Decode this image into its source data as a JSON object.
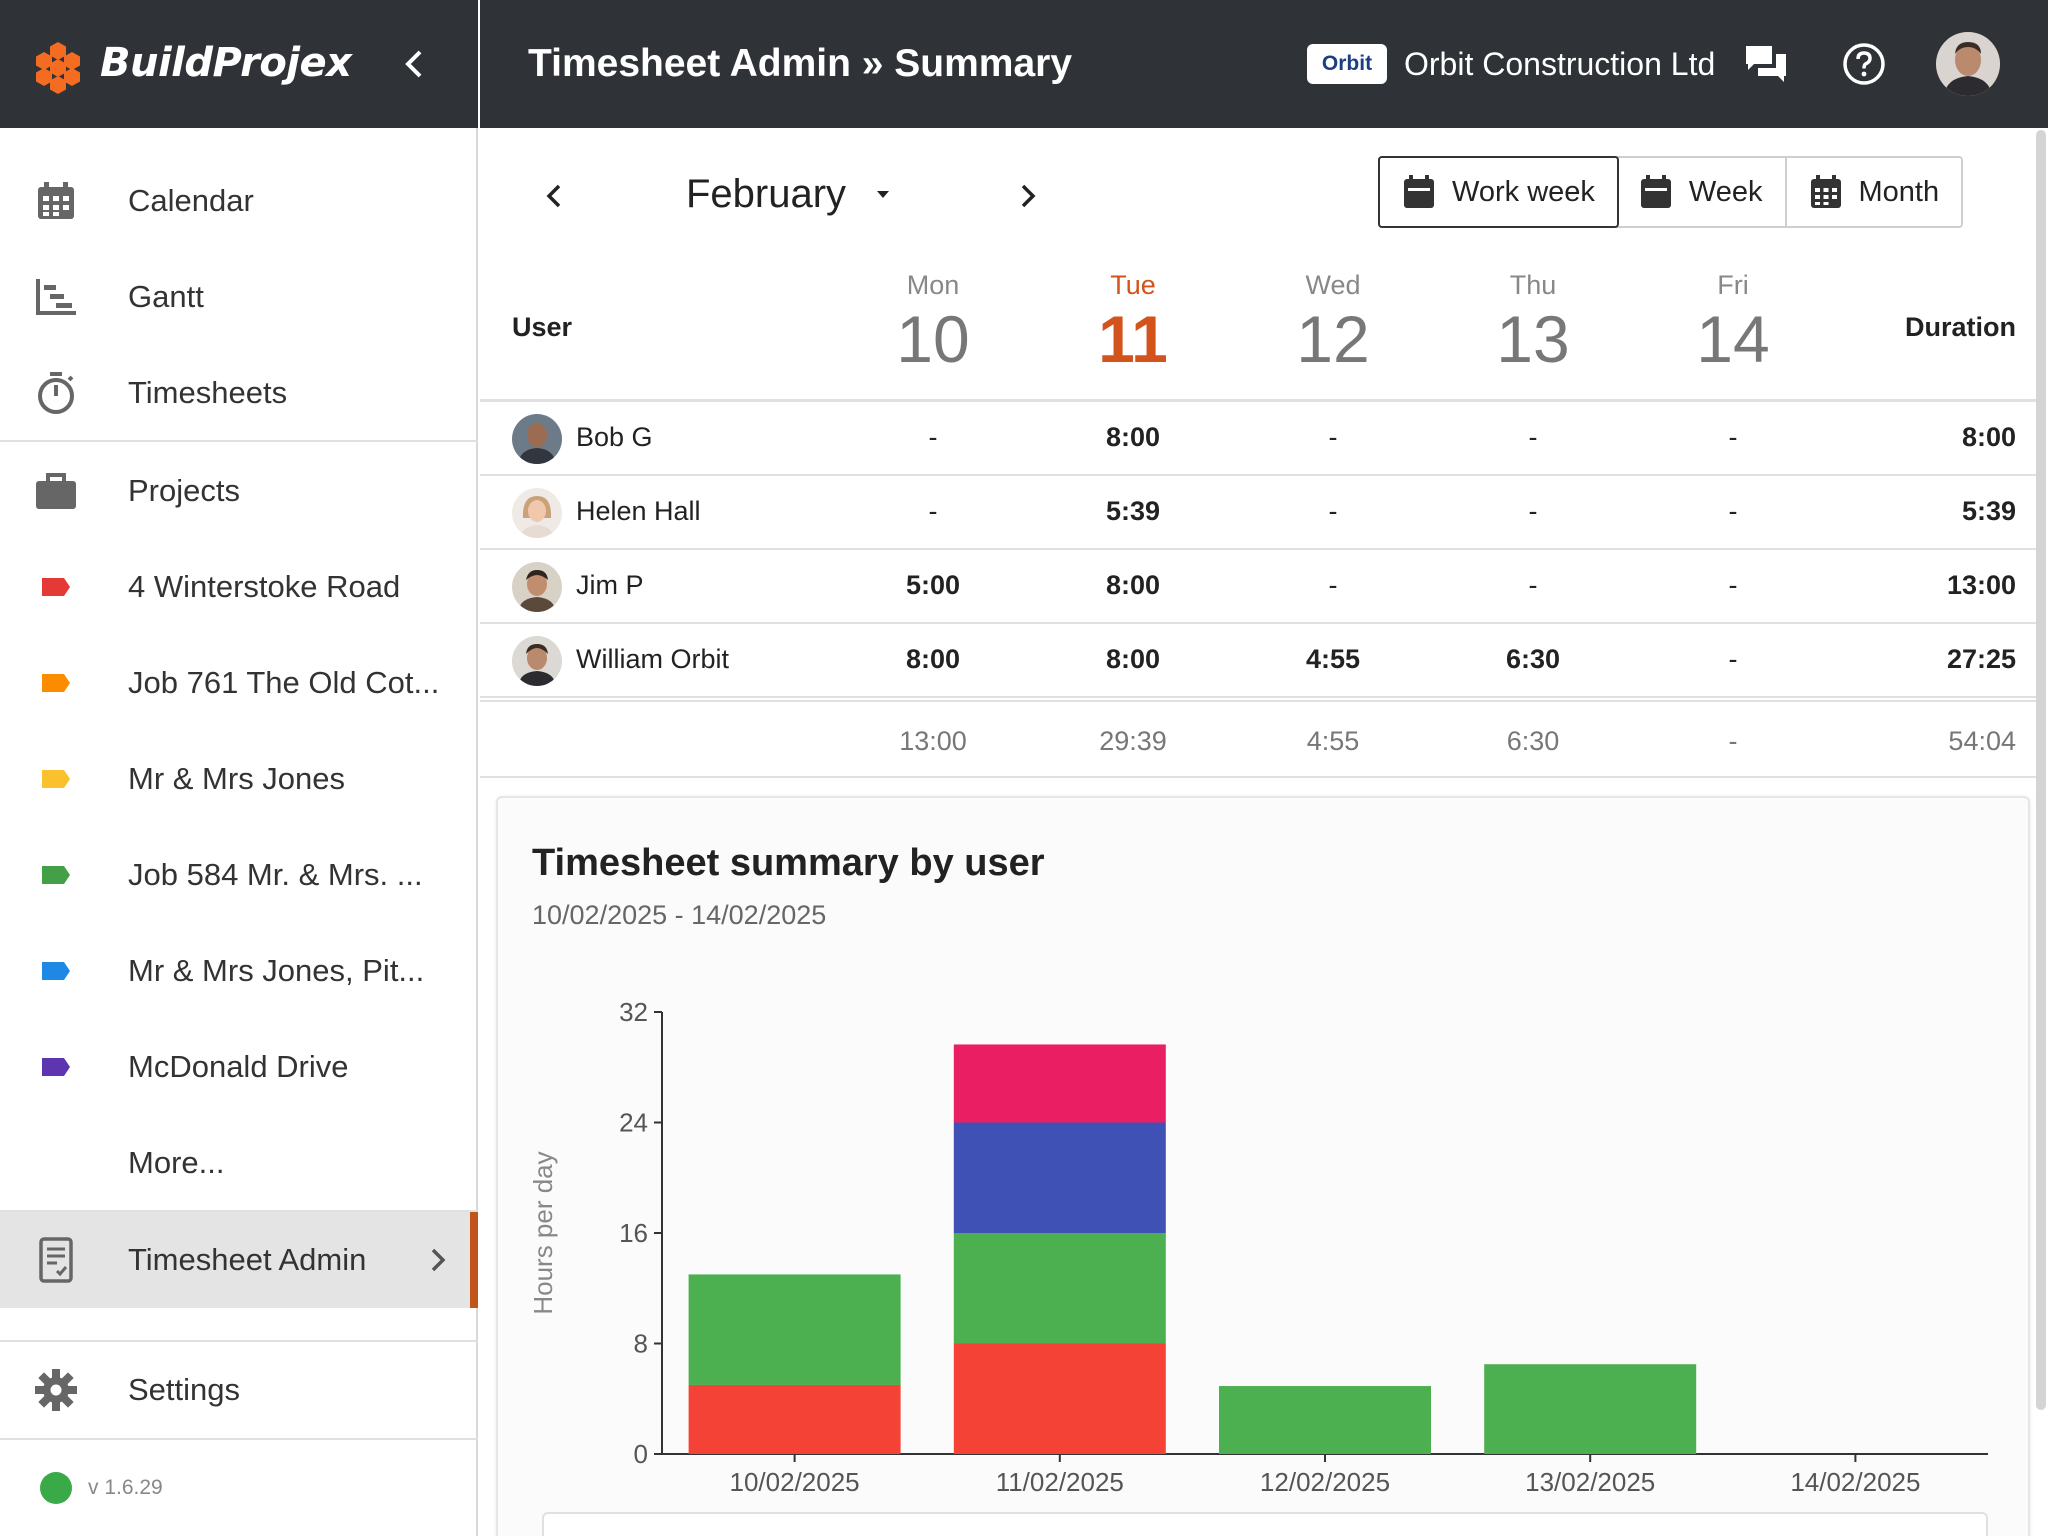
{
  "app": {
    "brand": "BuildProjex",
    "version": "v 1.6.29"
  },
  "header": {
    "title": "Timesheet Admin » Summary",
    "org_logo_text": "Orbit",
    "org_name": "Orbit Construction Ltd"
  },
  "sidebar": {
    "items": [
      {
        "label": "Calendar",
        "icon": "calendar-icon"
      },
      {
        "label": "Gantt",
        "icon": "gantt-icon"
      },
      {
        "label": "Timesheets",
        "icon": "stopwatch-icon"
      },
      {
        "label": "Projects",
        "icon": "briefcase-icon"
      },
      {
        "label": "4 Winterstoke Road",
        "icon": "tag-icon",
        "color": "#e53935"
      },
      {
        "label": "Job 761 The Old Cot...",
        "icon": "tag-icon",
        "color": "#fb8c00"
      },
      {
        "label": "Mr & Mrs Jones",
        "icon": "tag-icon",
        "color": "#fbc02d"
      },
      {
        "label": "Job 584 Mr. & Mrs. ...",
        "icon": "tag-icon",
        "color": "#43a047"
      },
      {
        "label": "Mr & Mrs Jones, Pit...",
        "icon": "tag-icon",
        "color": "#1e88e5"
      },
      {
        "label": "McDonald Drive",
        "icon": "tag-icon",
        "color": "#5e35b1"
      },
      {
        "label": "More...",
        "icon": ""
      },
      {
        "label": "Timesheet Admin",
        "icon": "timesheet-document-icon",
        "active": true
      },
      {
        "label": "Settings",
        "icon": "gear-icon"
      }
    ]
  },
  "toolbar": {
    "month": "February",
    "views": [
      {
        "label": "Work week",
        "selected": true
      },
      {
        "label": "Week",
        "selected": false
      },
      {
        "label": "Month",
        "selected": false
      }
    ]
  },
  "table": {
    "user_header": "User",
    "duration_header": "Duration",
    "days": [
      {
        "name": "Mon",
        "date": "10",
        "today": false
      },
      {
        "name": "Tue",
        "date": "11",
        "today": true
      },
      {
        "name": "Wed",
        "date": "12",
        "today": false
      },
      {
        "name": "Thu",
        "date": "13",
        "today": false
      },
      {
        "name": "Fri",
        "date": "14",
        "today": false
      }
    ],
    "rows": [
      {
        "user": "Bob G",
        "values": [
          "-",
          "8:00",
          "-",
          "-",
          "-"
        ],
        "duration": "8:00"
      },
      {
        "user": "Helen Hall",
        "values": [
          "-",
          "5:39",
          "-",
          "-",
          "-"
        ],
        "duration": "5:39"
      },
      {
        "user": "Jim P",
        "values": [
          "5:00",
          "8:00",
          "-",
          "-",
          "-"
        ],
        "duration": "13:00"
      },
      {
        "user": "William Orbit",
        "values": [
          "8:00",
          "8:00",
          "4:55",
          "6:30",
          "-"
        ],
        "duration": "27:25"
      }
    ],
    "totals": {
      "values": [
        "13:00",
        "29:39",
        "4:55",
        "6:30",
        "-"
      ],
      "duration": "54:04"
    }
  },
  "chart_card": {
    "title": "Timesheet summary by user",
    "subtitle": "10/02/2025 - 14/02/2025"
  },
  "colors": {
    "header_bg": "#2f3337",
    "accent": "#d2541c",
    "active_bar": "#c0541a"
  },
  "chart_data": {
    "type": "bar",
    "stacked": true,
    "categories": [
      "10/02/2025",
      "11/02/2025",
      "12/02/2025",
      "13/02/2025",
      "14/02/2025"
    ],
    "series": [
      {
        "values": [
          5,
          8,
          0,
          0,
          0
        ],
        "color": "#f44336"
      },
      {
        "values": [
          8,
          8,
          4.92,
          6.5,
          0
        ],
        "color": "#4caf50"
      },
      {
        "values": [
          0,
          8,
          0,
          0,
          0
        ],
        "color": "#3f51b5"
      },
      {
        "values": [
          0,
          5.65,
          0,
          0,
          0
        ],
        "color": "#e91e63"
      }
    ],
    "ylabel": "Hours per day",
    "ylim": [
      0,
      32
    ],
    "yticks": [
      0,
      8,
      16,
      24,
      32
    ],
    "grid": false,
    "legend": "none"
  }
}
